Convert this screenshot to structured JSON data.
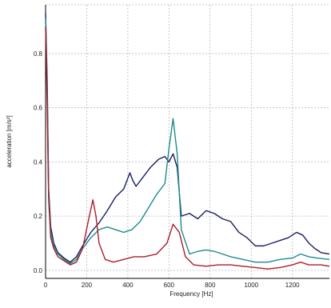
{
  "chart_data": {
    "type": "line",
    "title": "",
    "xlabel": "Frequency [Hz]",
    "ylabel": "acceleration [m/s²]",
    "xlim": [
      0,
      1380
    ],
    "ylim": [
      -0.03,
      0.98
    ],
    "x_ticks": [
      0,
      200,
      400,
      600,
      800,
      1000,
      1200
    ],
    "y_ticks": [
      0.0,
      0.2,
      0.4,
      0.6,
      0.8
    ],
    "y_tick_labels": [
      "0.0",
      "0.2",
      "0.4",
      "0.6",
      "0.8"
    ],
    "grid": true,
    "series": [
      {
        "color": "#1a1f5e",
        "x": [
          0,
          8,
          15,
          25,
          40,
          60,
          90,
          120,
          150,
          180,
          220,
          260,
          300,
          340,
          380,
          410,
          425,
          440,
          470,
          510,
          550,
          580,
          600,
          620,
          640,
          660,
          700,
          740,
          780,
          820,
          860,
          900,
          940,
          980,
          1020,
          1060,
          1100,
          1140,
          1180,
          1220,
          1250,
          1280,
          1310,
          1340,
          1380
        ],
        "y": [
          0.95,
          0.7,
          0.3,
          0.16,
          0.1,
          0.065,
          0.045,
          0.03,
          0.05,
          0.09,
          0.14,
          0.175,
          0.22,
          0.27,
          0.3,
          0.36,
          0.33,
          0.31,
          0.34,
          0.38,
          0.41,
          0.42,
          0.4,
          0.43,
          0.38,
          0.2,
          0.21,
          0.19,
          0.22,
          0.21,
          0.19,
          0.18,
          0.14,
          0.12,
          0.09,
          0.09,
          0.1,
          0.11,
          0.12,
          0.14,
          0.13,
          0.1,
          0.08,
          0.065,
          0.06
        ]
      },
      {
        "color": "#1e8c8c",
        "x": [
          0,
          8,
          15,
          25,
          40,
          60,
          90,
          120,
          150,
          180,
          220,
          260,
          300,
          340,
          380,
          420,
          460,
          500,
          540,
          580,
          600,
          620,
          640,
          660,
          700,
          740,
          780,
          820,
          860,
          900,
          960,
          1020,
          1080,
          1140,
          1200,
          1240,
          1280,
          1320,
          1380
        ],
        "y": [
          0.93,
          0.65,
          0.28,
          0.14,
          0.09,
          0.06,
          0.04,
          0.025,
          0.04,
          0.08,
          0.12,
          0.15,
          0.16,
          0.15,
          0.14,
          0.15,
          0.18,
          0.23,
          0.28,
          0.32,
          0.45,
          0.56,
          0.43,
          0.15,
          0.06,
          0.07,
          0.075,
          0.07,
          0.06,
          0.05,
          0.04,
          0.03,
          0.03,
          0.04,
          0.045,
          0.06,
          0.05,
          0.045,
          0.04
        ]
      },
      {
        "color": "#a8202a",
        "x": [
          0,
          8,
          15,
          25,
          40,
          60,
          90,
          120,
          150,
          180,
          210,
          230,
          245,
          260,
          290,
          330,
          380,
          430,
          480,
          540,
          590,
          620,
          650,
          680,
          720,
          780,
          840,
          900,
          960,
          1020,
          1080,
          1140,
          1200,
          1240,
          1280,
          1340,
          1380
        ],
        "y": [
          0.9,
          0.6,
          0.26,
          0.12,
          0.08,
          0.05,
          0.035,
          0.02,
          0.03,
          0.08,
          0.19,
          0.26,
          0.2,
          0.1,
          0.04,
          0.03,
          0.04,
          0.05,
          0.05,
          0.06,
          0.1,
          0.17,
          0.14,
          0.05,
          0.02,
          0.015,
          0.02,
          0.02,
          0.015,
          0.01,
          0.005,
          0.01,
          0.02,
          0.03,
          0.02,
          0.02,
          0.015
        ]
      }
    ]
  }
}
